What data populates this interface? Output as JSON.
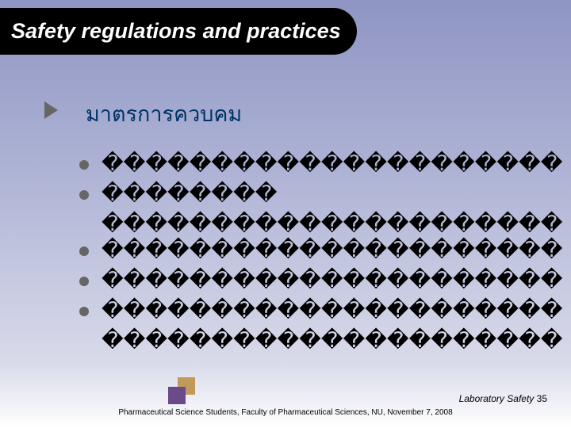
{
  "colors": {
    "bg_gradient_top": "#8f95c3",
    "bg_gradient_mid": "#aeb3d5",
    "bg_gradient_low": "#d9dbea",
    "bg_gradient_bottom": "#ffffff",
    "title_bg": "#000000",
    "title_text": "#ffffff",
    "heading_text": "#003366",
    "body_text": "#000000",
    "arrow_bullet": "#666666",
    "disc_bullet": "#666666",
    "deco_square_1": "#c19a5b",
    "deco_square_2": "#6b4a8a"
  },
  "typography": {
    "title_fontsize": 27,
    "title_weight": "bold",
    "title_style": "italic",
    "heading_fontsize": 27,
    "body_fontsize": 27,
    "footer_right_fontsize": 12,
    "footer_sub_fontsize": 10
  },
  "title": "Safety regulations and practices",
  "section_heading": "มาตรการควบคม",
  "bullets": [
    {
      "text": "������������������������",
      "continuation": null
    },
    {
      "text": "��������",
      "continuation": "������������������������"
    },
    {
      "text": "������������������������",
      "continuation": null
    },
    {
      "text": "������������������������",
      "continuation": null
    },
    {
      "text": "������������������������",
      "continuation": "������������������������ ����"
    }
  ],
  "footer": {
    "right_text": "Laboratory Safety",
    "page_number": "35",
    "sub_text": "Pharmaceutical Science Students, Faculty of Pharmaceutical Sciences, NU, November 7, 2008"
  }
}
